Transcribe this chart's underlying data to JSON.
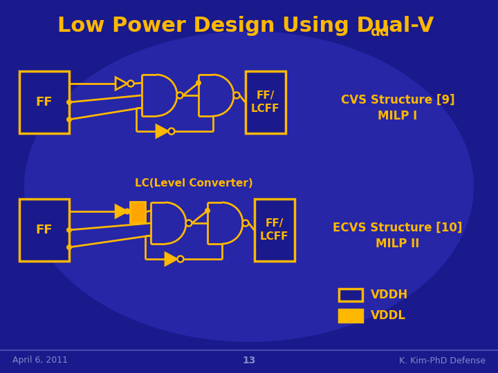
{
  "bg_dark": "#1a1a8c",
  "bg_mid": "#2525aa",
  "bg_light": "#3535c8",
  "yellow": "#FFB800",
  "yellow_fill": "#FFB800",
  "orange_fill": "#FFA500",
  "title_main": "Low Power Design Using Dual-V",
  "title_sub": "dd",
  "footer_left": "April 6, 2011",
  "footer_mid": "13",
  "footer_right": "K. Kim-PhD Defense",
  "cvs_line1": "CVS Structure [9]",
  "cvs_line2": "MILP I",
  "ecvs_line1": "ECVS Structure [10]",
  "ecvs_line2": "MILP II",
  "lc_label": "LC(Level Converter)",
  "vddh_label": "VDDH",
  "vddl_label": "VDDL",
  "ff_label": "FF",
  "fflcff_label": "FF/\nLCFF"
}
